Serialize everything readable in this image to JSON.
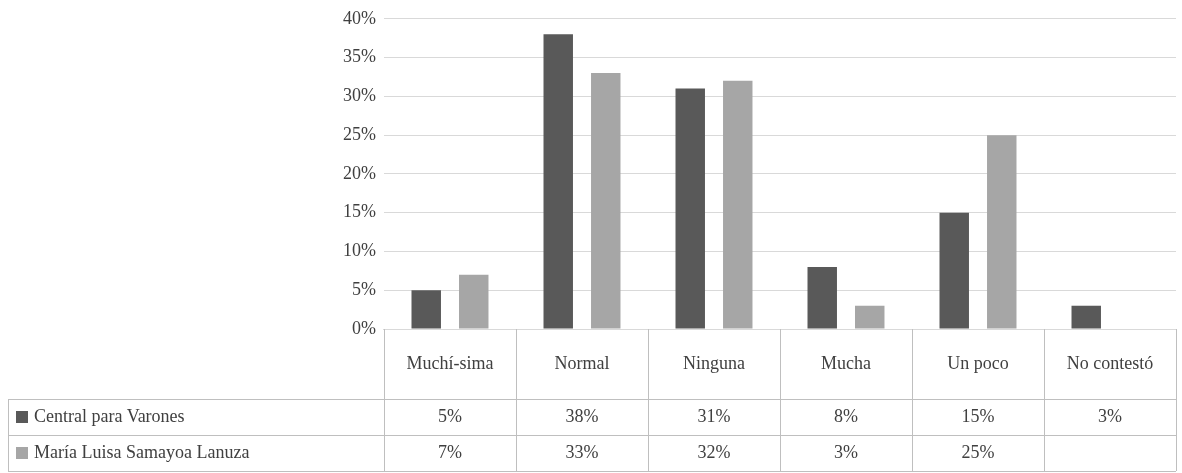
{
  "chart_data": {
    "type": "bar",
    "categories": [
      "Muchí-sima",
      "Normal",
      "Ninguna",
      "Mucha",
      "Un poco",
      "No contestó"
    ],
    "series": [
      {
        "name": "Central para Varones",
        "color": "#595959",
        "values": [
          5,
          38,
          31,
          8,
          15,
          3
        ],
        "value_labels": [
          "5%",
          "38%",
          "31%",
          "8%",
          "15%",
          "3%"
        ]
      },
      {
        "name": "María Luisa Samayoa Lanuza",
        "color": "#a6a6a6",
        "values": [
          7,
          33,
          32,
          3,
          25,
          null
        ],
        "value_labels": [
          "7%",
          "33%",
          "32%",
          "3%",
          "25%",
          null
        ]
      }
    ],
    "ylim": [
      0,
      40
    ],
    "yticks": [
      {
        "value": 0,
        "label": "0%"
      },
      {
        "value": 5,
        "label": "5%"
      },
      {
        "value": 10,
        "label": "10%"
      },
      {
        "value": 15,
        "label": "15%"
      },
      {
        "value": 20,
        "label": "20%"
      },
      {
        "value": 25,
        "label": "25%"
      },
      {
        "value": 30,
        "label": "30%"
      },
      {
        "value": 35,
        "label": "35%"
      },
      {
        "value": 40,
        "label": "40%"
      }
    ],
    "grid": "y",
    "legend": "bottom"
  }
}
